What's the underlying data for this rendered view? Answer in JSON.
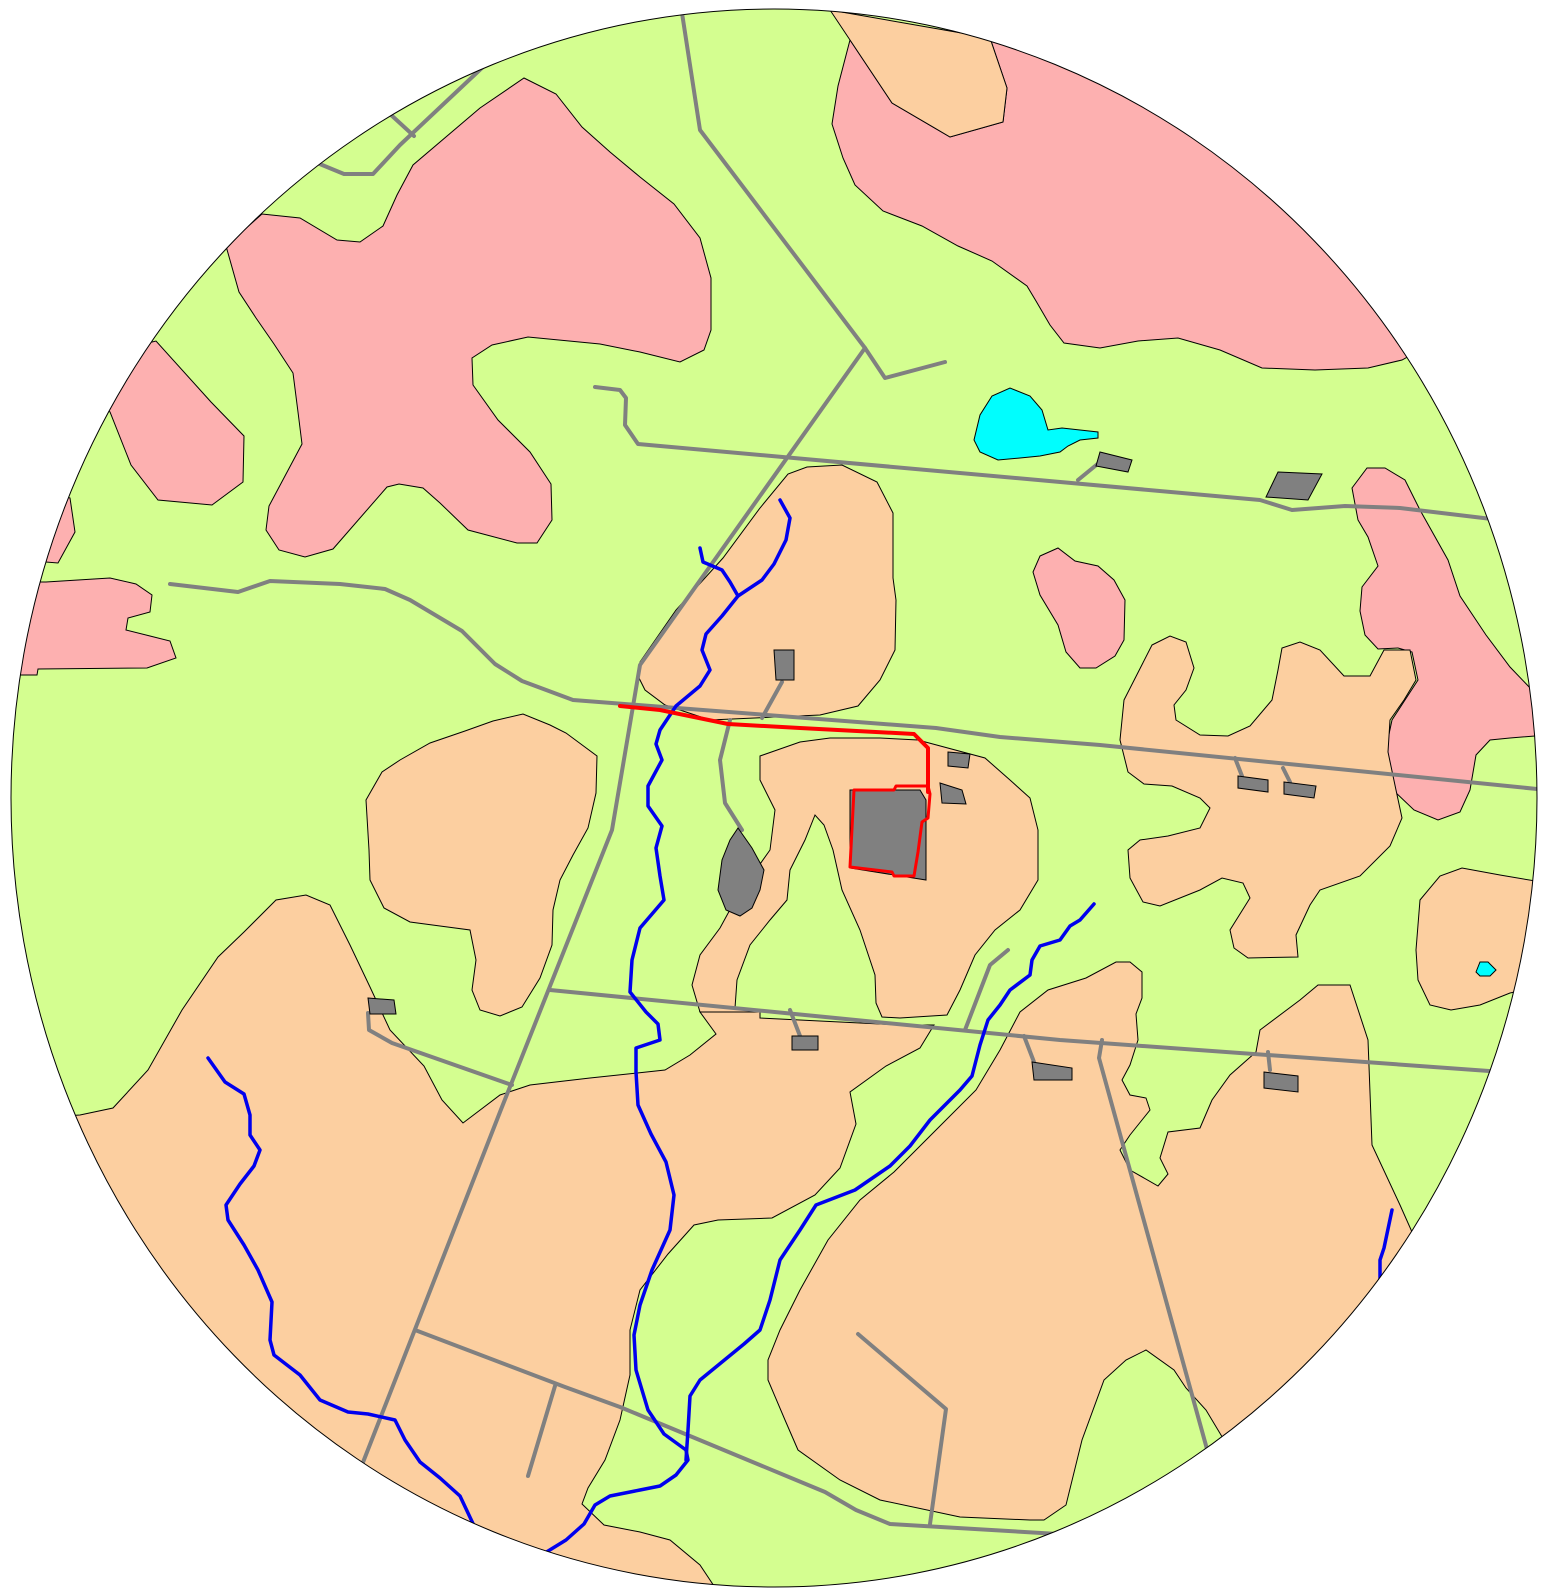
{
  "map": {
    "colors": {
      "grassland": "#d4fe90",
      "forest": "#fccfa0",
      "urban_zone": "#fdb0b0",
      "water": "#00fefe",
      "building": "#808080",
      "road": "#808080",
      "stream": "#0000ee",
      "highlight": "#ff0000",
      "outline": "#000000"
    },
    "layers": [
      "land-cover",
      "water-bodies",
      "roads",
      "streams",
      "buildings",
      "highlighted-parcel"
    ]
  }
}
